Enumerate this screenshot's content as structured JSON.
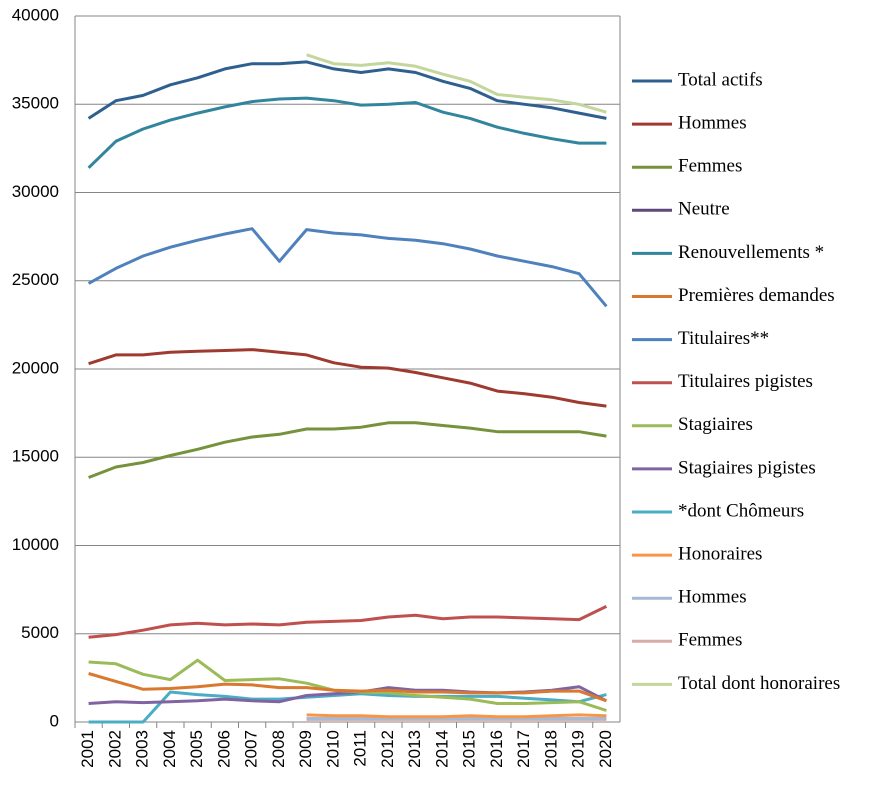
{
  "chart_data": {
    "type": "line",
    "categories": [
      "2001",
      "2002",
      "2003",
      "2004",
      "2005",
      "2006",
      "2007",
      "2008",
      "2009",
      "2010",
      "2011",
      "2012",
      "2013",
      "2014",
      "2015",
      "2016",
      "2017",
      "2018",
      "2019",
      "2020"
    ],
    "ylim": [
      0,
      40000
    ],
    "yticks": [
      0,
      5000,
      10000,
      15000,
      20000,
      25000,
      30000,
      35000,
      40000
    ],
    "grid": true,
    "legend": "right",
    "series": [
      {
        "name": "Total actifs",
        "color": "#2f5f8f",
        "values": [
          34200,
          35200,
          35500,
          36100,
          36500,
          37000,
          37300,
          37300,
          37400,
          37000,
          36800,
          37000,
          36800,
          36300,
          35900,
          35200,
          35000,
          34800,
          34500,
          34200
        ]
      },
      {
        "name": "Hommes",
        "color": "#9e3a30",
        "values": [
          20300,
          20800,
          20800,
          20950,
          21000,
          21050,
          21100,
          20950,
          20800,
          20350,
          20100,
          20050,
          19800,
          19500,
          19200,
          18750,
          18600,
          18400,
          18100,
          17900
        ]
      },
      {
        "name": "Femmes",
        "color": "#76923c",
        "values": [
          13850,
          14450,
          14700,
          15100,
          15450,
          15850,
          16150,
          16300,
          16600,
          16600,
          16700,
          16950,
          16950,
          16800,
          16650,
          16450,
          16450,
          16450,
          16450,
          16200
        ]
      },
      {
        "name": "Neutre",
        "color": "#5f497a",
        "values": [
          null,
          null,
          null,
          null,
          null,
          null,
          null,
          null,
          null,
          null,
          null,
          null,
          null,
          null,
          null,
          null,
          null,
          null,
          null,
          null
        ]
      },
      {
        "name": "Renouvellements *",
        "color": "#31859c",
        "values": [
          31400,
          32900,
          33600,
          34100,
          34500,
          34850,
          35150,
          35300,
          35350,
          35200,
          34950,
          35000,
          35100,
          34550,
          34200,
          33700,
          33350,
          33050,
          32800,
          32800
        ]
      },
      {
        "name": "Premières demandes",
        "color": "#d9782f",
        "values": [
          2750,
          2300,
          1850,
          1900,
          2000,
          2150,
          2100,
          1950,
          1950,
          1800,
          1750,
          1800,
          1700,
          1700,
          1650,
          1650,
          1650,
          1750,
          1750,
          1200
        ]
      },
      {
        "name": "Titulaires**",
        "color": "#4f81bd",
        "values": [
          24850,
          25700,
          26400,
          26900,
          27300,
          27650,
          27950,
          26100,
          27900,
          27700,
          27600,
          27400,
          27300,
          27100,
          26800,
          26400,
          26100,
          25800,
          25400,
          23550
        ]
      },
      {
        "name": "Titulaires pigistes",
        "color": "#c0504d",
        "values": [
          4800,
          4950,
          5200,
          5500,
          5600,
          5500,
          5550,
          5500,
          5650,
          5700,
          5750,
          5950,
          6050,
          5850,
          5950,
          5950,
          5900,
          5850,
          5800,
          6550
        ]
      },
      {
        "name": "Stagiaires",
        "color": "#9bbb59",
        "values": [
          3400,
          3300,
          2700,
          2400,
          3500,
          2350,
          2400,
          2450,
          2200,
          1800,
          1700,
          1650,
          1500,
          1400,
          1300,
          1050,
          1050,
          1100,
          1150,
          650
        ]
      },
      {
        "name": "Stagiaires pigistes",
        "color": "#8064a2",
        "values": [
          1050,
          1150,
          1100,
          1150,
          1200,
          1300,
          1200,
          1150,
          1500,
          1600,
          1700,
          1950,
          1800,
          1800,
          1700,
          1650,
          1700,
          1800,
          2000,
          1200
        ]
      },
      {
        "name": "*dont Chômeurs",
        "color": "#4bacc6",
        "values": [
          0,
          0,
          0,
          1700,
          1550,
          1450,
          1300,
          1300,
          1400,
          1500,
          1600,
          1500,
          1450,
          1450,
          1450,
          1450,
          1350,
          1250,
          1150,
          1550
        ]
      },
      {
        "name": "Honoraires",
        "color": "#f79646",
        "values": [
          null,
          null,
          null,
          null,
          null,
          null,
          null,
          null,
          400,
          350,
          350,
          300,
          300,
          300,
          350,
          300,
          300,
          350,
          400,
          350
        ]
      },
      {
        "name": "Hommes",
        "color": "#a6b9d6",
        "values": [
          null,
          null,
          null,
          null,
          null,
          null,
          null,
          null,
          200,
          200,
          200,
          200,
          200,
          200,
          200,
          200,
          200,
          200,
          200,
          200
        ]
      },
      {
        "name": "Femmes",
        "color": "#d8aaa8",
        "values": [
          null,
          null,
          null,
          null,
          null,
          null,
          null,
          null,
          150,
          150,
          150,
          150,
          150,
          150,
          150,
          150,
          150,
          150,
          150,
          150
        ]
      },
      {
        "name": "Total dont honoraires",
        "color": "#c3d69b",
        "values": [
          null,
          null,
          null,
          null,
          null,
          null,
          null,
          null,
          37800,
          37300,
          37200,
          37350,
          37150,
          36700,
          36300,
          35550,
          35400,
          35250,
          35000,
          34550
        ]
      }
    ]
  }
}
